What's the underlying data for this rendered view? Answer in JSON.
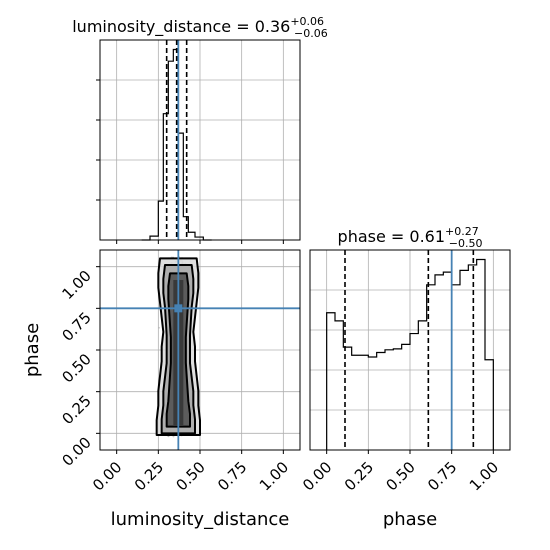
{
  "chart_data": {
    "type": "corner",
    "parameters": [
      "luminosity_distance",
      "phase"
    ],
    "axis_ticks": [
      "0.00",
      "0.25",
      "0.50",
      "0.75",
      "1.00"
    ],
    "xlim": [
      -0.1,
      1.1
    ],
    "ylim": [
      -0.1,
      1.1
    ],
    "grid": true,
    "truth": {
      "luminosity_distance": 0.37,
      "phase": 0.75
    },
    "quantiles": {
      "luminosity_distance": [
        0.3,
        0.36,
        0.42
      ],
      "phase": [
        0.11,
        0.61,
        0.88
      ]
    },
    "titles": {
      "luminosity_distance": {
        "name": "luminosity_distance",
        "median": "0.36",
        "plus": "+0.06",
        "minus": "−0.06"
      },
      "phase": {
        "name": "phase",
        "median": "0.61",
        "plus": "+0.27",
        "minus": "−0.50"
      }
    },
    "hist_luminosity_distance": {
      "bin_edges": [
        0.15,
        0.2,
        0.25,
        0.28,
        0.31,
        0.34,
        0.37,
        0.4,
        0.43,
        0.47,
        0.52,
        0.57
      ],
      "counts": [
        0,
        20,
        200,
        650,
        920,
        980,
        550,
        120,
        40,
        15,
        0
      ]
    },
    "hist_phase": {
      "bin_edges": [
        0.0,
        0.05,
        0.1,
        0.15,
        0.2,
        0.25,
        0.3,
        0.35,
        0.4,
        0.45,
        0.5,
        0.55,
        0.6,
        0.65,
        0.7,
        0.75,
        0.8,
        0.85,
        0.9,
        0.95,
        1.0
      ],
      "counts": [
        152,
        143,
        114,
        105,
        105,
        103,
        108,
        111,
        112,
        117,
        129,
        143,
        183,
        194,
        197,
        183,
        199,
        205,
        211,
        100
      ]
    },
    "contours_2d": {
      "x": "luminosity_distance",
      "y": "phase",
      "mean_x": 0.37,
      "levels": [
        {
          "half_width": [
            0.13,
            0.13,
            0.12,
            0.12,
            0.11,
            0.1,
            0.1,
            0.09,
            0.1,
            0.11,
            0.12,
            0.12,
            0.11
          ],
          "ymin": -0.01,
          "ymax": 1.05
        },
        {
          "half_width": [
            0.1,
            0.1,
            0.09,
            0.09,
            0.08,
            0.07,
            0.07,
            0.07,
            0.075,
            0.08,
            0.09,
            0.09,
            0.08
          ],
          "ymin": 0.0,
          "ymax": 1.01
        },
        {
          "half_width": [
            0.07,
            0.07,
            0.06,
            0.055,
            0.05,
            0.045,
            0.045,
            0.045,
            0.05,
            0.055,
            0.06,
            0.06,
            0.05
          ],
          "ymin": 0.04,
          "ymax": 0.96
        }
      ]
    }
  },
  "colors": {
    "truth_line": "#4682b4",
    "contour": "#000000",
    "grid": "#b0b0b0",
    "fill_dark": "#4d4d4d",
    "fill_light": "#d9d9d9",
    "sample": "#9e9e9e"
  }
}
